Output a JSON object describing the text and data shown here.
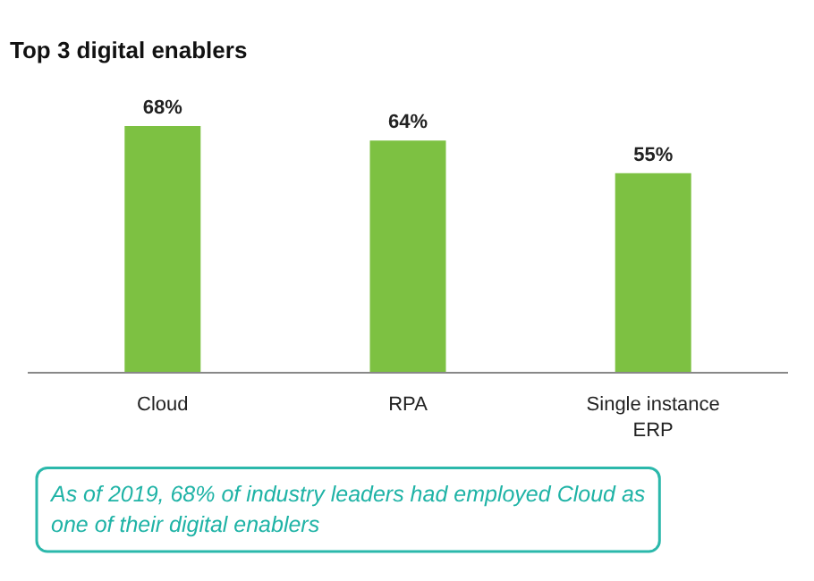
{
  "chart_data": {
    "type": "bar",
    "title": "Top 3 digital enablers",
    "categories": [
      "Cloud",
      "RPA",
      "Single instance\nERP"
    ],
    "values": [
      68,
      64,
      55
    ],
    "color": "#7dc142",
    "value_labels": [
      "68%",
      "64%",
      "55%"
    ],
    "annotations": [
      "As of 2019, 68% of industry leaders had employed Cloud as one of their digital enablers"
    ],
    "grid": false
  }
}
